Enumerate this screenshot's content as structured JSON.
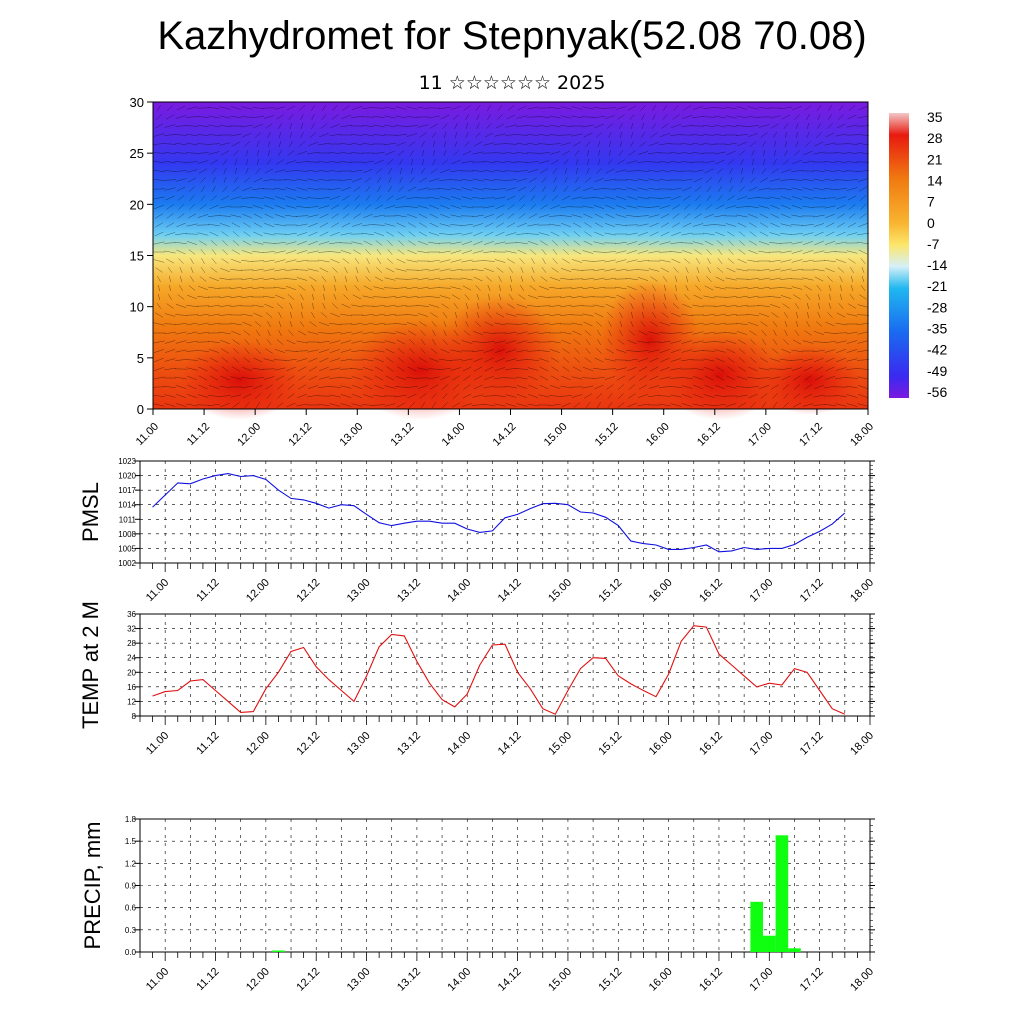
{
  "title": "Kazhydromet for Stepnyak(52.08 70.08)",
  "subtitle": "11 ☆☆☆☆☆☆ 2025",
  "x_tick_labels": [
    "11.00",
    "11.12",
    "12.00",
    "12.12",
    "13.00",
    "13.12",
    "14.00",
    "14.12",
    "15.00",
    "15.12",
    "16.00",
    "16.12",
    "17.00",
    "17.12",
    "18.00"
  ],
  "chart_data": [
    {
      "type": "heatmap",
      "description_key": "vertical-section",
      "xlabel": "",
      "ylabel": "",
      "ylim": [
        0,
        30
      ],
      "y_ticks": [
        0,
        5,
        10,
        15,
        20,
        25,
        30
      ],
      "colorbar_labels": [
        35,
        28,
        21,
        14,
        7,
        0,
        -7,
        -14,
        -21,
        -28,
        -35,
        -42,
        -49,
        -56
      ],
      "colors": {
        "warm_top": "#f2c8c8",
        "red": "#e81a10",
        "orange": "#f07a10",
        "yellow": "#fce66a",
        "cyan": "#20b8f0",
        "blue": "#3a2af0",
        "violet": "#7a1ae0"
      },
      "profile_levels": [
        0,
        4,
        8,
        12,
        15,
        17,
        20,
        24,
        30
      ],
      "profile_values": [
        24,
        20,
        14,
        3,
        -8,
        -18,
        -32,
        -46,
        -56
      ]
    },
    {
      "type": "line",
      "ylabel": "PMSL",
      "ylim": [
        1002,
        1023
      ],
      "y_ticks": [
        1002,
        1005,
        1008,
        1011,
        1014,
        1017,
        1020,
        1023
      ],
      "color": "#1010e0",
      "x_hours": [
        -3,
        0,
        3,
        6,
        9,
        12,
        15,
        18,
        21,
        24,
        27,
        30,
        33,
        36,
        39,
        42,
        45,
        48,
        51,
        54,
        57,
        60,
        63,
        66,
        69,
        72,
        75,
        78,
        81,
        84,
        87,
        90,
        93,
        96,
        99,
        102,
        105,
        108,
        111,
        114,
        117,
        120,
        123,
        126,
        129,
        132,
        135,
        138,
        141,
        144,
        147,
        150,
        153,
        156,
        159,
        162
      ],
      "values": [
        1013.5,
        1016,
        1018.5,
        1018.3,
        1019.3,
        1020,
        1020.4,
        1019.8,
        1020,
        1019.2,
        1017,
        1015.3,
        1015,
        1014.3,
        1013.3,
        1014,
        1013.8,
        1012,
        1010.3,
        1009.7,
        1010.2,
        1010.6,
        1010.6,
        1010.2,
        1010.2,
        1009,
        1008.3,
        1008.6,
        1011.3,
        1012,
        1013.2,
        1014.2,
        1014.3,
        1014,
        1012.5,
        1012.3,
        1011.4,
        1009.7,
        1006.5,
        1006,
        1005.7,
        1004.8,
        1004.8,
        1005.2,
        1005.7,
        1004.3,
        1004.5,
        1005.2,
        1004.8,
        1005,
        1005,
        1005.8,
        1007.3,
        1008.5,
        1010,
        1012.3
      ]
    },
    {
      "type": "line",
      "ylabel": "TEMP at 2 M",
      "ylim": [
        8,
        36
      ],
      "y_ticks": [
        8,
        12,
        16,
        20,
        24,
        28,
        32,
        36
      ],
      "color": "#e01010",
      "x_hours": [
        -3,
        0,
        3,
        6,
        9,
        12,
        15,
        18,
        21,
        24,
        27,
        30,
        33,
        36,
        39,
        42,
        45,
        48,
        51,
        54,
        57,
        60,
        63,
        66,
        69,
        72,
        75,
        78,
        81,
        84,
        87,
        90,
        93,
        96,
        99,
        102,
        105,
        108,
        111,
        114,
        117,
        120,
        123,
        126,
        129,
        132,
        135,
        138,
        141,
        144,
        147,
        150,
        153,
        156,
        159,
        162
      ],
      "values": [
        13.5,
        14.7,
        15,
        17.6,
        18,
        15,
        12,
        9,
        9.2,
        15.5,
        20,
        25.7,
        26.8,
        21.5,
        18,
        15,
        12,
        19,
        27,
        30.4,
        30,
        23,
        17,
        12.5,
        10.5,
        14,
        22,
        27.5,
        27.7,
        20,
        15.5,
        10,
        8.5,
        15,
        21,
        24,
        23.8,
        19,
        16.8,
        15,
        13.3,
        19.5,
        28.5,
        32.8,
        32.4,
        25,
        22,
        19,
        16,
        17,
        16.5,
        21,
        20,
        15,
        10,
        8.5
      ]
    },
    {
      "type": "bar",
      "ylabel": "PRECIP, mm",
      "ylim": [
        0.0,
        1.8
      ],
      "y_ticks": [
        "0.0",
        "0.3",
        "0.6",
        "0.9",
        "1.2",
        "1.5",
        "1.8"
      ],
      "color": "#10ff10",
      "x_hours": [
        -3,
        0,
        3,
        6,
        9,
        12,
        15,
        18,
        21,
        24,
        27,
        30,
        33,
        36,
        39,
        42,
        45,
        48,
        51,
        54,
        57,
        60,
        63,
        66,
        69,
        72,
        75,
        78,
        81,
        84,
        87,
        90,
        93,
        96,
        99,
        102,
        105,
        108,
        111,
        114,
        117,
        120,
        123,
        126,
        129,
        132,
        135,
        138,
        141,
        144,
        147,
        150,
        153,
        156,
        159,
        162
      ],
      "values": [
        0,
        0,
        0,
        0,
        0,
        0,
        0,
        0,
        0,
        0,
        0.02,
        0,
        0,
        0,
        0,
        0,
        0,
        0,
        0,
        0,
        0,
        0,
        0,
        0,
        0,
        0,
        0,
        0,
        0,
        0,
        0,
        0,
        0,
        0,
        0,
        0,
        0,
        0,
        0,
        0,
        0,
        0,
        0,
        0,
        0,
        0,
        0,
        0,
        0.68,
        0.22,
        1.58,
        0.05,
        0,
        0,
        0,
        0
      ]
    }
  ]
}
